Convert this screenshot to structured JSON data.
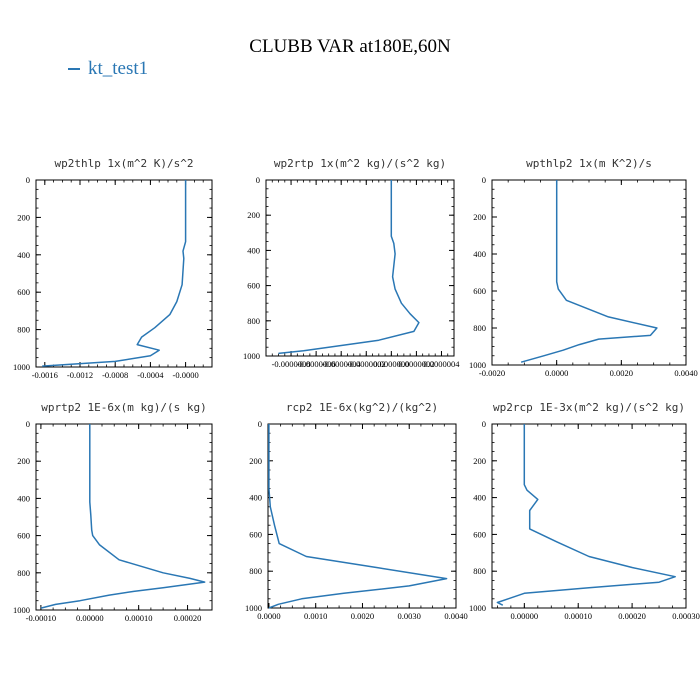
{
  "title": "CLUBB VAR at180E,60N",
  "legend": {
    "label": "kt_test1",
    "color": "#2a77b4"
  },
  "colors": {
    "line": "#2a77b4",
    "axis": "#000000"
  },
  "chart_data": [
    {
      "type": "line",
      "title": "wp2thlp   1x(m^2 K)/s^2",
      "xlim": [
        -0.0017,
        0.0003
      ],
      "ylim": [
        0,
        1000
      ],
      "xticks": [
        -0.0016,
        -0.0012,
        -0.0008,
        -0.0004,
        0.0
      ],
      "xtick_labels": [
        "-0.0016",
        "-0.0012",
        "-0.0008",
        "-0.0004",
        "-0.0000"
      ],
      "yticks": [
        0,
        200,
        400,
        600,
        800,
        1000
      ],
      "ytick_labels": [
        "0",
        "200",
        "400",
        "600",
        "800",
        "1000"
      ],
      "series": [
        {
          "name": "kt_test1",
          "x": [
            0.0,
            0.0,
            -3e-05,
            -2e-05,
            -4e-05,
            -0.0001,
            -0.00018,
            -0.00035,
            -0.0005,
            -0.00055,
            -0.0003,
            -0.0004,
            -0.0008,
            -0.00163
          ],
          "y": [
            0,
            330,
            380,
            420,
            560,
            650,
            720,
            790,
            840,
            880,
            910,
            940,
            970,
            995
          ]
        }
      ]
    },
    {
      "type": "line",
      "title": "wp2rtp   1x(m^2 kg)/(s^2 kg)",
      "xlim": [
        -1e-06,
        5e-07
      ],
      "ylim": [
        0,
        1000
      ],
      "xticks": [
        -8e-07,
        -6e-07,
        -4e-07,
        -2e-07,
        0.0,
        2e-07,
        4e-07
      ],
      "xtick_labels": [
        "-0.0000008",
        "-0.0000006",
        "-0.0000004",
        "-0.0000002",
        "0.0000000",
        "0.0000002",
        "0.0000004"
      ],
      "yticks": [
        0,
        200,
        400,
        600,
        800,
        1000
      ],
      "ytick_labels": [
        "0",
        "200",
        "400",
        "600",
        "800",
        "1000"
      ],
      "series": [
        {
          "name": "kt_test1",
          "x": [
            0.0,
            0.0,
            2e-08,
            3e-08,
            1e-08,
            3e-08,
            8e-08,
            1.5e-07,
            2.2e-07,
            1.8e-07,
            -1e-07,
            -5e-07,
            -7e-07,
            -9e-07
          ],
          "y": [
            0,
            320,
            360,
            420,
            550,
            620,
            700,
            760,
            810,
            860,
            910,
            950,
            970,
            985
          ]
        }
      ]
    },
    {
      "type": "line",
      "title": "wpthlp2   1x(m K^2)/s",
      "xlim": [
        -0.002,
        0.004
      ],
      "ylim": [
        0,
        1000
      ],
      "xticks": [
        -0.002,
        0.0,
        0.002,
        0.004
      ],
      "xtick_labels": [
        "-0.0020",
        "0.0000",
        "0.0020",
        "0.0040"
      ],
      "yticks": [
        0,
        200,
        400,
        600,
        800,
        1000
      ],
      "ytick_labels": [
        "0",
        "200",
        "400",
        "600",
        "800",
        "1000"
      ],
      "series": [
        {
          "name": "kt_test1",
          "x": [
            0.0,
            0.0,
            5e-05,
            0.0003,
            0.0016,
            0.0031,
            0.0029,
            0.0013,
            0.0007,
            0.0002,
            -0.0004,
            -0.0011
          ],
          "y": [
            0,
            550,
            590,
            650,
            740,
            800,
            840,
            860,
            890,
            920,
            950,
            985
          ]
        }
      ]
    },
    {
      "type": "line",
      "title": "wprtp2   1E-6x(m kg)/(s kg)",
      "xlim": [
        -0.00011,
        0.00025
      ],
      "ylim": [
        0,
        1000
      ],
      "xticks": [
        -0.0001,
        0.0,
        0.0001,
        0.0002
      ],
      "xtick_labels": [
        "-0.00010",
        "0.00000",
        "0.00010",
        "0.00020"
      ],
      "yticks": [
        0,
        200,
        400,
        600,
        800,
        1000
      ],
      "ytick_labels": [
        "0",
        "200",
        "400",
        "600",
        "800",
        "1000"
      ],
      "series": [
        {
          "name": "kt_test1",
          "x": [
            0.0,
            0.0,
            2e-06,
            4e-06,
            6e-06,
            2e-05,
            6e-05,
            0.00015,
            0.000205,
            0.000235,
            0.00015,
            9e-05,
            4e-05,
            -2e-05,
            -7e-05,
            -0.0001
          ],
          "y": [
            0,
            420,
            490,
            570,
            600,
            650,
            730,
            800,
            830,
            850,
            880,
            900,
            920,
            950,
            970,
            990
          ]
        }
      ]
    },
    {
      "type": "line",
      "title": "rcp2   1E-6x(kg^2)/(kg^2)",
      "xlim": [
        -2e-05,
        0.004
      ],
      "ylim": [
        0,
        1000
      ],
      "xticks": [
        0.0,
        0.001,
        0.002,
        0.003,
        0.004
      ],
      "xtick_labels": [
        "0.0000",
        "0.0010",
        "0.0020",
        "0.0030",
        "0.0040"
      ],
      "yticks": [
        0,
        200,
        400,
        600,
        800,
        1000
      ],
      "ytick_labels": [
        "0",
        "200",
        "400",
        "600",
        "800",
        "1000"
      ],
      "series": [
        {
          "name": "kt_test1",
          "x": [
            0.0,
            0.0,
            3e-05,
            0.00012,
            0.00022,
            0.0008,
            0.0023,
            0.0038,
            0.003,
            0.0016,
            0.0007,
            0.0002,
            0.0
          ],
          "y": [
            0,
            350,
            450,
            550,
            650,
            720,
            780,
            840,
            880,
            920,
            950,
            980,
            1000
          ]
        }
      ]
    },
    {
      "type": "line",
      "title": "wp2rcp   1E-3x(m^2 kg)/(s^2 kg)",
      "xlim": [
        -6e-05,
        0.0003
      ],
      "ylim": [
        0,
        1000
      ],
      "xticks": [
        0.0,
        0.0001,
        0.0002,
        0.0003
      ],
      "xtick_labels": [
        "0.00000",
        "0.00010",
        "0.00020",
        "0.00030"
      ],
      "yticks": [
        0,
        200,
        400,
        600,
        800,
        1000
      ],
      "ytick_labels": [
        "0",
        "200",
        "400",
        "600",
        "800",
        "1000"
      ],
      "series": [
        {
          "name": "kt_test1",
          "x": [
            0.0,
            0.0,
            5e-06,
            2.5e-05,
            1e-05,
            1e-05,
            6e-05,
            0.00012,
            0.0002,
            0.00028,
            0.00025,
            0.00012,
            0.0,
            -3e-05,
            -5e-05,
            -4e-05
          ],
          "y": [
            0,
            330,
            360,
            410,
            470,
            570,
            640,
            720,
            780,
            830,
            860,
            890,
            920,
            950,
            970,
            985
          ]
        }
      ]
    }
  ]
}
